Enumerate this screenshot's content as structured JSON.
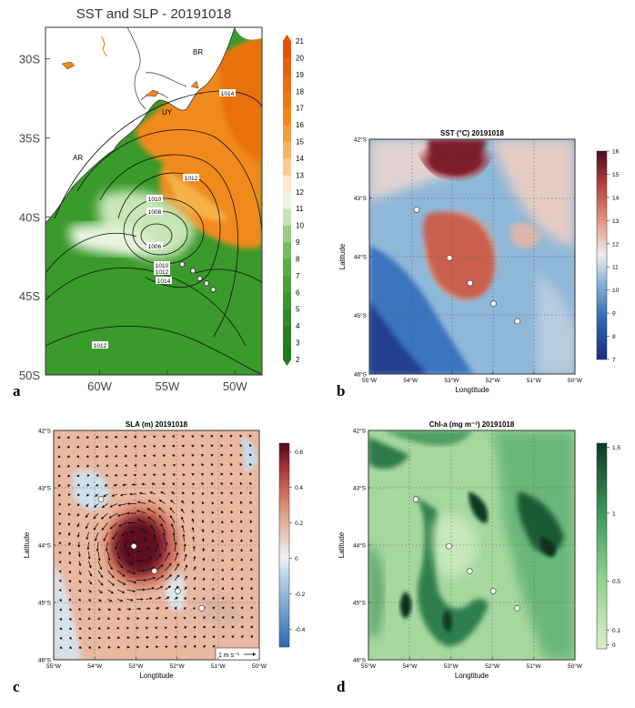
{
  "panel_letters": [
    "a",
    "b",
    "c",
    "d"
  ],
  "chart_data": [
    {
      "type": "heatmap",
      "title": "SST and SLP - 20191018",
      "xticks": [
        "60W",
        "55W",
        "50W"
      ],
      "yticks": [
        "30S",
        "35S",
        "40S",
        "45S",
        "50S"
      ],
      "xlim": [
        -64,
        -48
      ],
      "ylim": [
        -50,
        -28
      ],
      "colorbar_ticks": [
        "2",
        "3",
        "4",
        "5",
        "6",
        "7",
        "8",
        "9",
        "10",
        "11",
        "12",
        "13",
        "14",
        "15",
        "16",
        "17",
        "18",
        "19",
        "20",
        "21"
      ],
      "colorbar_range": [
        2,
        21
      ],
      "region_labels": [
        "BR",
        "UY",
        "AR"
      ],
      "contour_labels": [
        "1014",
        "1012",
        "1010",
        "1008",
        "1006",
        "1010",
        "1012",
        "1014",
        "1012"
      ],
      "stations": [
        [
          -53.9,
          -43.0
        ],
        [
          -53.1,
          -43.4
        ],
        [
          -52.6,
          -43.9
        ],
        [
          -52.1,
          -44.2
        ],
        [
          -51.6,
          -44.6
        ]
      ],
      "low_center": [
        -56.0,
        -41.5
      ],
      "colors": {
        "warm": "#f08a1a",
        "cold": "#3c9a2c",
        "land": "#ffffff"
      }
    },
    {
      "type": "heatmap",
      "title": "SST (°C) 20191018",
      "xlabel": "Longtitude",
      "ylabel": "Latitude",
      "xticks": [
        "55°W",
        "54°W",
        "53°W",
        "52°W",
        "51°W",
        "50°W"
      ],
      "yticks": [
        "42°S",
        "43°S",
        "44°S",
        "45°S",
        "46°S"
      ],
      "xlim": [
        -55,
        -50
      ],
      "ylim": [
        -46,
        -42
      ],
      "colorbar_ticks": [
        "7",
        "8",
        "9",
        "10",
        "11",
        "12",
        "13",
        "14",
        "15",
        "16"
      ],
      "colorbar_range": [
        7,
        16
      ],
      "stations": [
        [
          -53.85,
          -43.2
        ],
        [
          -53.05,
          -44.02
        ],
        [
          -52.55,
          -44.45
        ],
        [
          -51.98,
          -44.8
        ],
        [
          -51.4,
          -45.1
        ]
      ]
    },
    {
      "type": "heatmap",
      "title": "SLA (m) 20191018",
      "xlabel": "Longtitude",
      "ylabel": "Latitude",
      "xticks": [
        "55°W",
        "54°W",
        "53°W",
        "52°W",
        "51°W",
        "50°W"
      ],
      "yticks": [
        "42°S",
        "43°S",
        "44°S",
        "45°S",
        "46°S"
      ],
      "xlim": [
        -55,
        -50
      ],
      "ylim": [
        -46,
        -42
      ],
      "colorbar_ticks": [
        "-0.4",
        "-0.2",
        "0",
        "0.2",
        "0.4",
        "0.6"
      ],
      "colorbar_range": [
        -0.5,
        0.65
      ],
      "vector_key": "1 m s⁻¹",
      "stations": [
        [
          -53.85,
          -43.2
        ],
        [
          -53.05,
          -44.02
        ],
        [
          -52.55,
          -44.45
        ],
        [
          -51.98,
          -44.8
        ],
        [
          -51.4,
          -45.1
        ]
      ]
    },
    {
      "type": "heatmap",
      "title": "Chl-a (mg m⁻³) 20191018",
      "xlabel": "Longtitude",
      "ylabel": "Latitude",
      "xticks": [
        "55°W",
        "54°W",
        "53°W",
        "52°W",
        "51°W",
        "50°W"
      ],
      "yticks": [
        "42°S",
        "43°S",
        "44°S",
        "45°S",
        "46°S"
      ],
      "xlim": [
        -55,
        -50
      ],
      "ylim": [
        -46,
        -42
      ],
      "colorbar_ticks": [
        "0",
        "0.1",
        "0.5",
        "1",
        "1.5"
      ],
      "colorbar_range": [
        0,
        1.5
      ],
      "stations": [
        [
          -53.85,
          -43.2
        ],
        [
          -53.05,
          -44.02
        ],
        [
          -52.55,
          -44.45
        ],
        [
          -51.98,
          -44.8
        ],
        [
          -51.4,
          -45.1
        ]
      ]
    }
  ]
}
